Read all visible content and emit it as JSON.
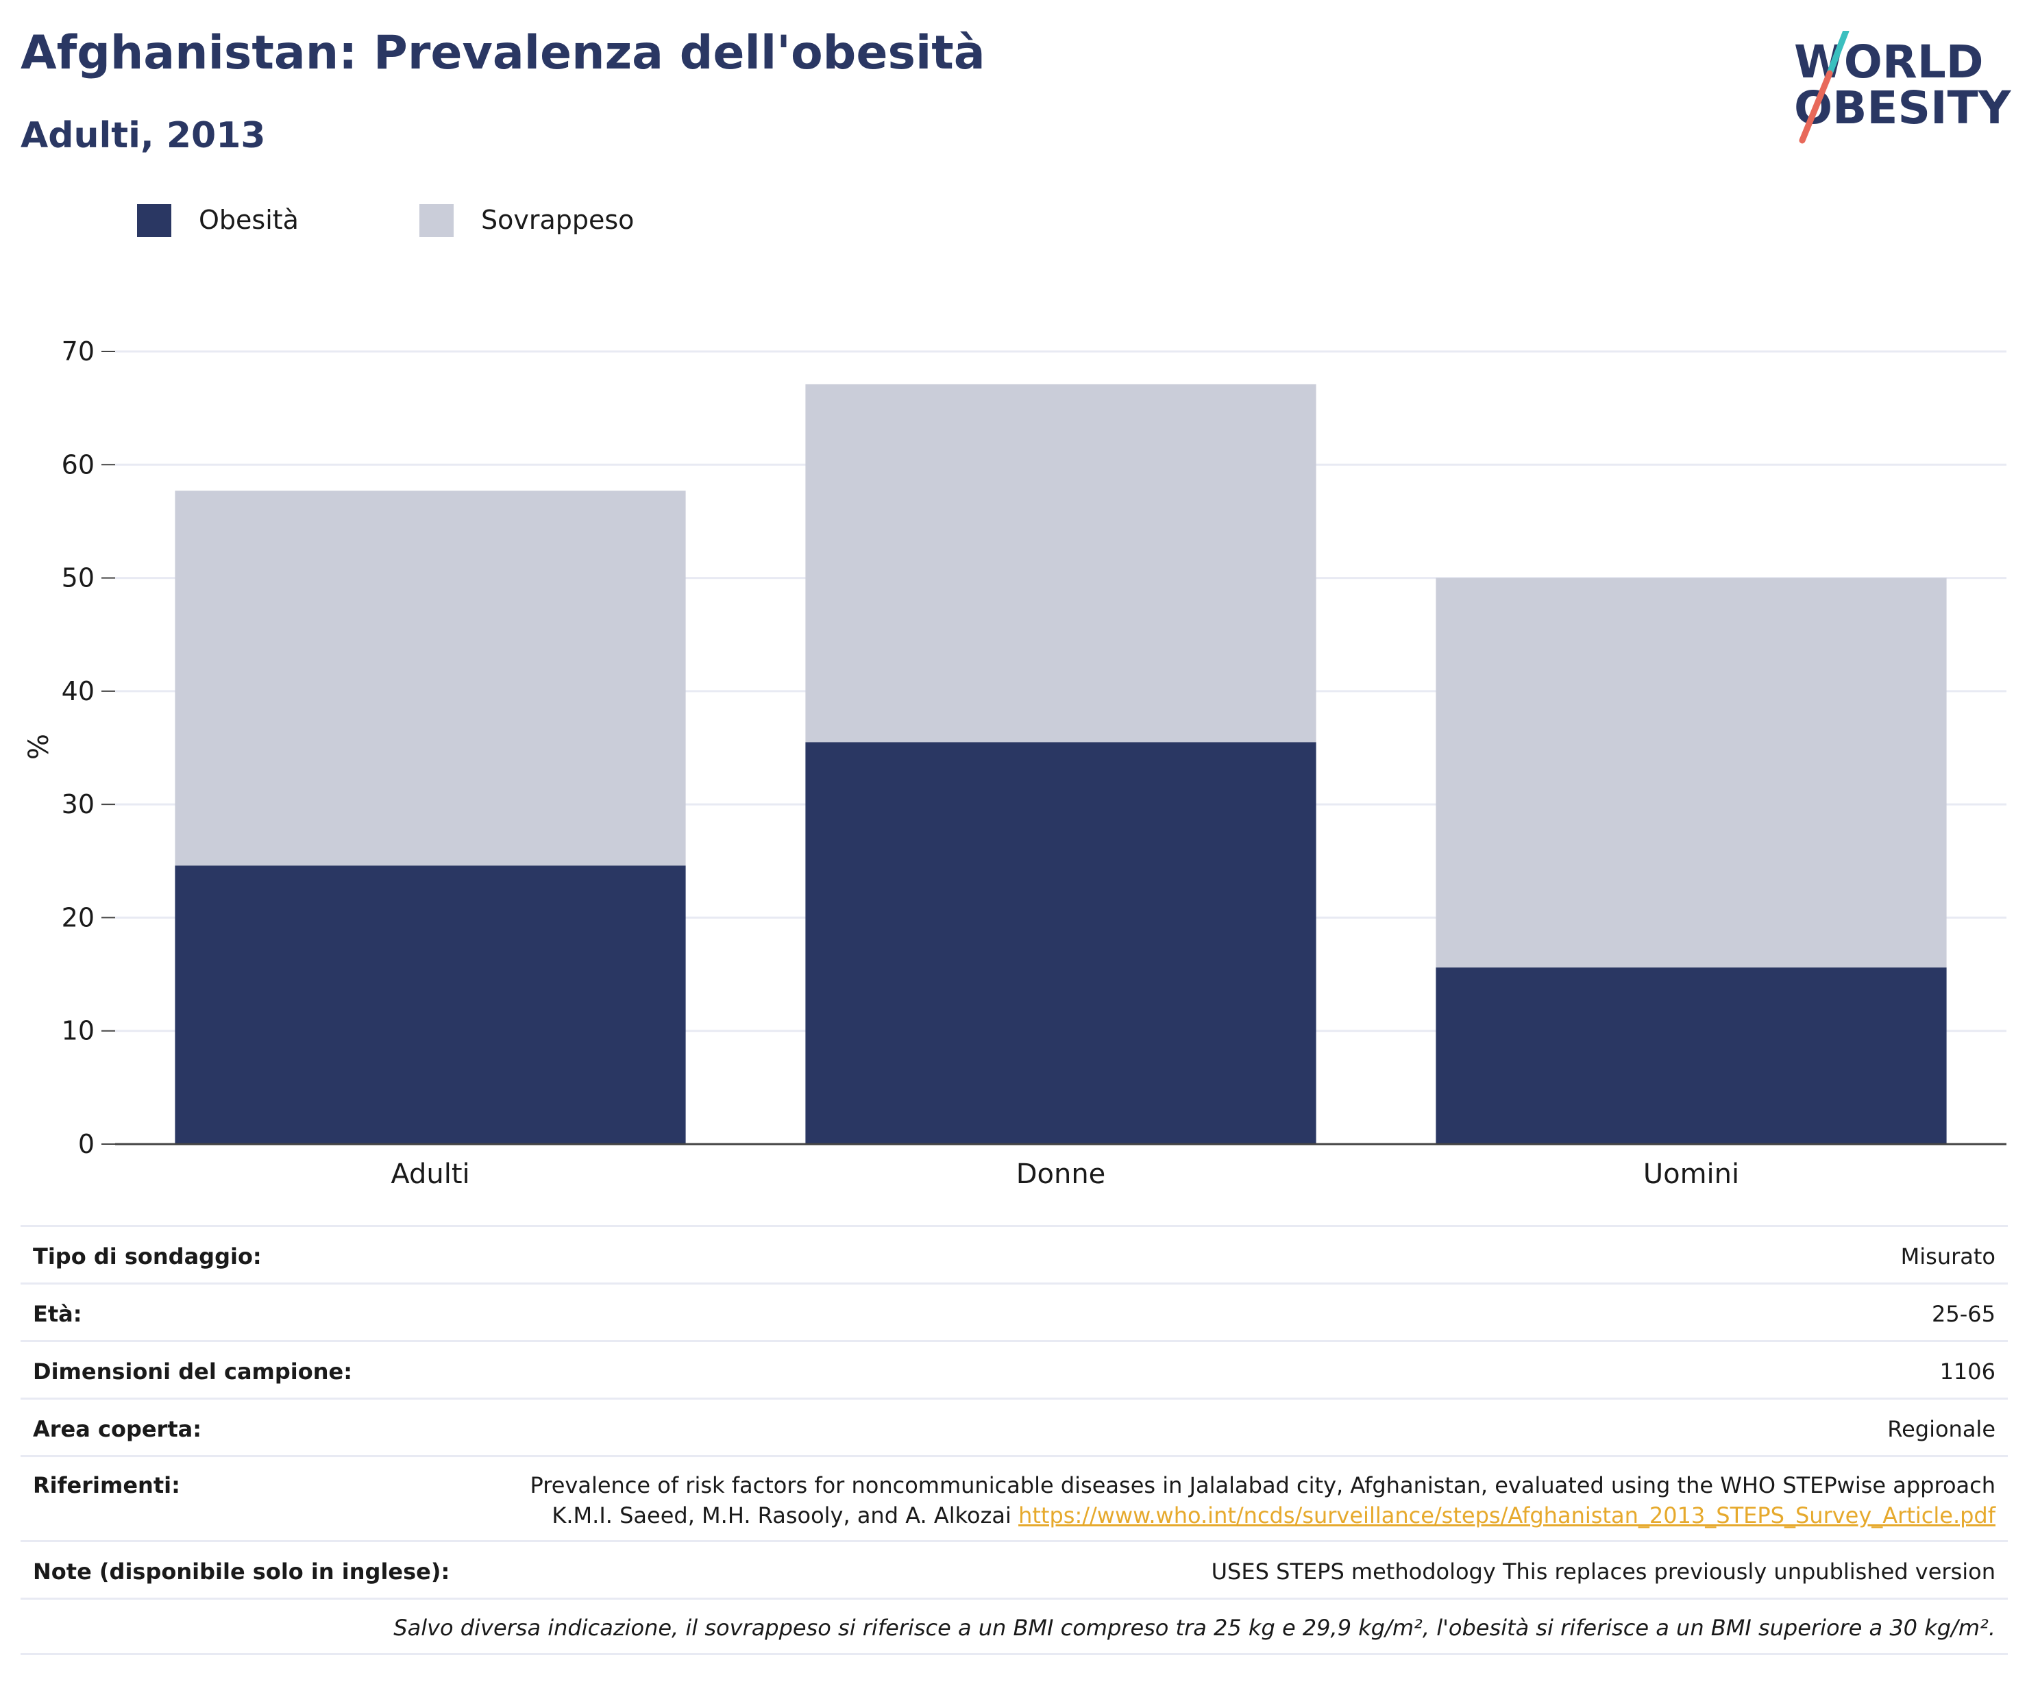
{
  "header": {
    "title": "Afghanistan: Prevalenza dell'obesità",
    "subtitle": "Adulti, 2013"
  },
  "logo": {
    "line1": "WORLD",
    "line2": "OBESITY"
  },
  "colors": {
    "obesity": "#2a3763",
    "overweight": "#cacdd9",
    "text": "#2a3763",
    "link": "#e6a92c"
  },
  "chart_data": {
    "type": "bar",
    "stacked": true,
    "categories": [
      "Adulti",
      "Donne",
      "Uomini"
    ],
    "series": [
      {
        "name": "Obesità",
        "color": "#2a3763",
        "values": [
          24.6,
          35.5,
          15.6
        ]
      },
      {
        "name": "Sovrappeso",
        "color": "#cacdd9",
        "values": [
          33.1,
          31.6,
          34.4
        ]
      }
    ],
    "ylabel": "%",
    "ylim": [
      0,
      70
    ],
    "yticks": [
      0,
      10,
      20,
      30,
      40,
      50,
      60,
      70
    ],
    "grid": true,
    "legend": "top-left"
  },
  "info": {
    "survey_type": {
      "label": "Tipo di sondaggio:",
      "value": "Misurato"
    },
    "age": {
      "label": "Età:",
      "value": "25-65"
    },
    "sample_size": {
      "label": "Dimensioni del campione:",
      "value": "1106"
    },
    "area": {
      "label": "Area coperta:",
      "value": "Regionale"
    },
    "references": {
      "label": "Riferimenti:",
      "line1": "Prevalence of risk factors for noncommunicable diseases in Jalalabad city, Afghanistan, evaluated using the WHO STEPwise approach",
      "line2_prefix": "K.M.I. Saeed, M.H. Rasooly, and A. Alkozai ",
      "link": "https://www.who.int/ncds/surveillance/steps/Afghanistan_2013_STEPS_Survey_Article.pdf"
    },
    "notes": {
      "label": "Note (disponibile solo in inglese):",
      "value": "USES STEPS methodology This replaces previously unpublished version"
    },
    "footnote": "Salvo diversa indicazione, il sovrappeso si riferisce a un BMI compreso tra 25 kg e 29,9 kg/m², l'obesità si riferisce a un BMI superiore a 30 kg/m²."
  }
}
